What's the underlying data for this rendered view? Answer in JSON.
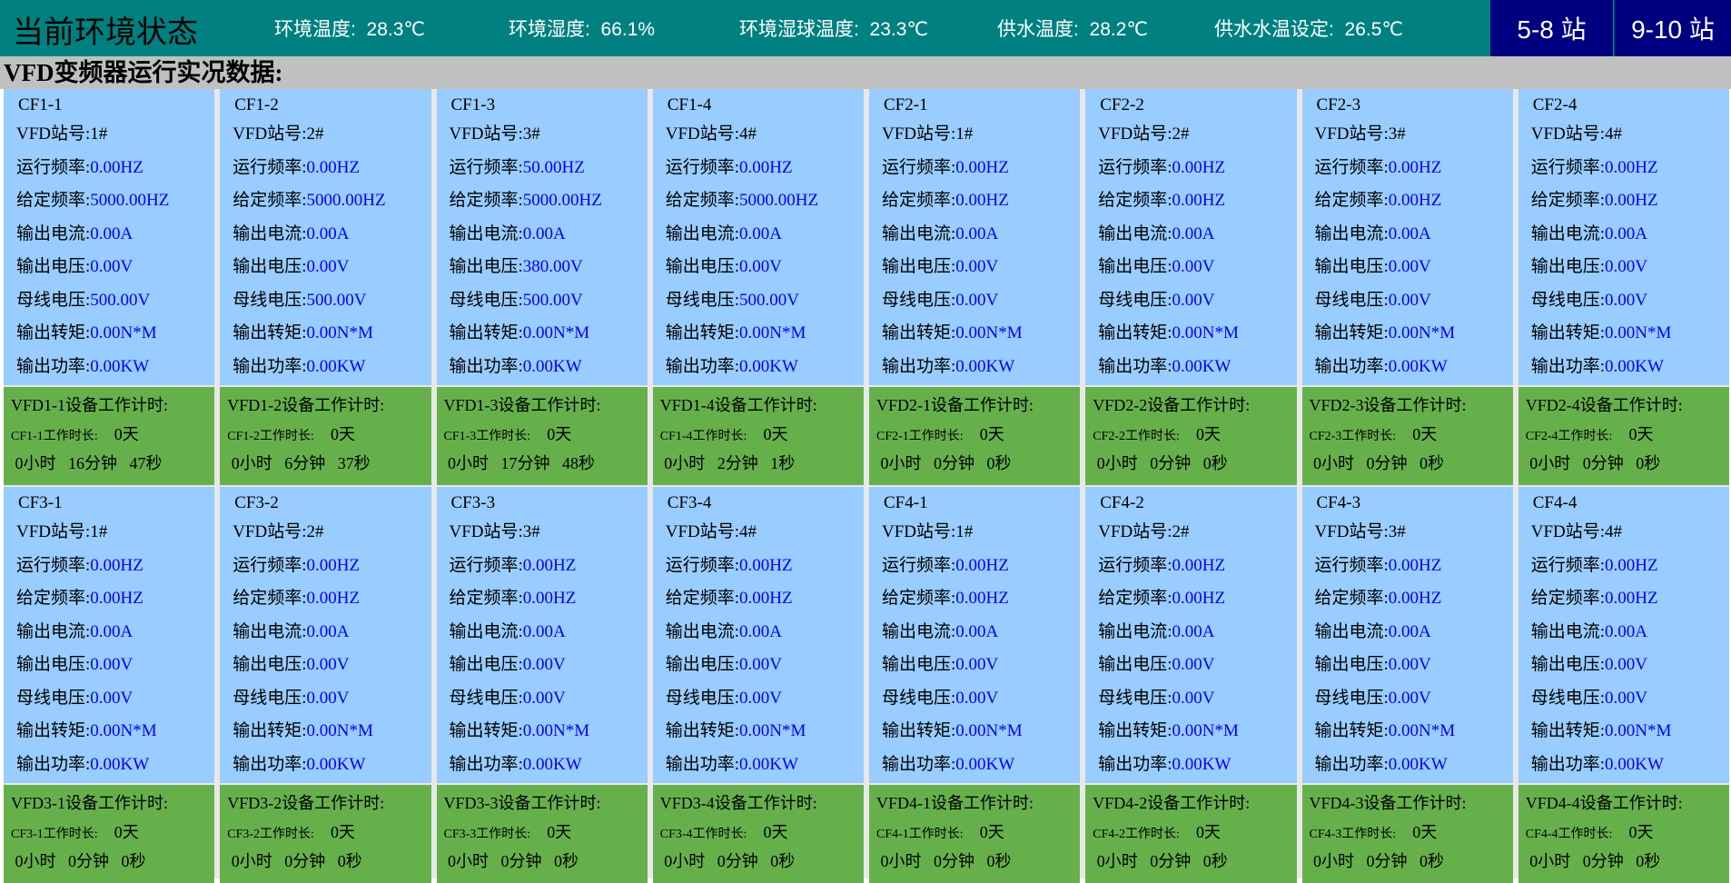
{
  "header": {
    "title": "当前环境状态",
    "env": [
      {
        "label": "环境温度:",
        "value": "28.3℃"
      },
      {
        "label": "环境湿度:",
        "value": "66.1%"
      },
      {
        "label": "环境湿球温度:",
        "value": "23.3℃"
      },
      {
        "label": "供水温度:",
        "value": "28.2℃"
      },
      {
        "label": "供水水温设定:",
        "value": "26.5℃"
      }
    ],
    "buttons": [
      "5-8 站",
      "9-10 站"
    ]
  },
  "section_title": "VFD变频器运行实况数据:",
  "labels": {
    "station": "VFD站号:",
    "run_freq": "运行频率:",
    "set_freq": "给定频率:",
    "current": "输出电流:",
    "out_volt": "输出电压:",
    "bus_volt": "母线电压:",
    "torque": "输出转矩:",
    "power": "输出功率:",
    "timer_suffix": "设备工作计时:",
    "dur_suffix": "工作时长:",
    "day": "天",
    "hour": "小时",
    "min": "分钟",
    "sec": "秒"
  },
  "rows": [
    {
      "cards": [
        {
          "name": "CF1-1",
          "vfd": "VFD1-1",
          "station": "1#",
          "run_freq": "0.00HZ",
          "set_freq": "5000.00HZ",
          "current": "0.00A",
          "out_volt": "0.00V",
          "bus_volt": "500.00V",
          "torque": "0.00N*M",
          "power": "0.00KW",
          "days": "0",
          "hours": "0",
          "mins": "16",
          "secs": "47"
        },
        {
          "name": "CF1-2",
          "vfd": "VFD1-2",
          "station": "2#",
          "run_freq": "0.00HZ",
          "set_freq": "5000.00HZ",
          "current": "0.00A",
          "out_volt": "0.00V",
          "bus_volt": "500.00V",
          "torque": "0.00N*M",
          "power": "0.00KW",
          "days": "0",
          "hours": "0",
          "mins": "6",
          "secs": "37"
        },
        {
          "name": "CF1-3",
          "vfd": "VFD1-3",
          "station": "3#",
          "run_freq": "50.00HZ",
          "set_freq": "5000.00HZ",
          "current": "0.00A",
          "out_volt": "380.00V",
          "bus_volt": "500.00V",
          "torque": "0.00N*M",
          "power": "0.00KW",
          "days": "0",
          "hours": "0",
          "mins": "17",
          "secs": "48"
        },
        {
          "name": "CF1-4",
          "vfd": "VFD1-4",
          "station": "4#",
          "run_freq": "0.00HZ",
          "set_freq": "5000.00HZ",
          "current": "0.00A",
          "out_volt": "0.00V",
          "bus_volt": "500.00V",
          "torque": "0.00N*M",
          "power": "0.00KW",
          "days": "0",
          "hours": "0",
          "mins": "2",
          "secs": "1"
        },
        {
          "name": "CF2-1",
          "vfd": "VFD2-1",
          "station": "1#",
          "run_freq": "0.00HZ",
          "set_freq": "0.00HZ",
          "current": "0.00A",
          "out_volt": "0.00V",
          "bus_volt": "0.00V",
          "torque": "0.00N*M",
          "power": "0.00KW",
          "days": "0",
          "hours": "0",
          "mins": "0",
          "secs": "0"
        },
        {
          "name": "CF2-2",
          "vfd": "VFD2-2",
          "station": "2#",
          "run_freq": "0.00HZ",
          "set_freq": "0.00HZ",
          "current": "0.00A",
          "out_volt": "0.00V",
          "bus_volt": "0.00V",
          "torque": "0.00N*M",
          "power": "0.00KW",
          "days": "0",
          "hours": "0",
          "mins": "0",
          "secs": "0"
        },
        {
          "name": "CF2-3",
          "vfd": "VFD2-3",
          "station": "3#",
          "run_freq": "0.00HZ",
          "set_freq": "0.00HZ",
          "current": "0.00A",
          "out_volt": "0.00V",
          "bus_volt": "0.00V",
          "torque": "0.00N*M",
          "power": "0.00KW",
          "days": "0",
          "hours": "0",
          "mins": "0",
          "secs": "0"
        },
        {
          "name": "CF2-4",
          "vfd": "VFD2-4",
          "station": "4#",
          "run_freq": "0.00HZ",
          "set_freq": "0.00HZ",
          "current": "0.00A",
          "out_volt": "0.00V",
          "bus_volt": "0.00V",
          "torque": "0.00N*M",
          "power": "0.00KW",
          "days": "0",
          "hours": "0",
          "mins": "0",
          "secs": "0"
        }
      ]
    },
    {
      "cards": [
        {
          "name": "CF3-1",
          "vfd": "VFD3-1",
          "station": "1#",
          "run_freq": "0.00HZ",
          "set_freq": "0.00HZ",
          "current": "0.00A",
          "out_volt": "0.00V",
          "bus_volt": "0.00V",
          "torque": "0.00N*M",
          "power": "0.00KW",
          "days": "0",
          "hours": "0",
          "mins": "0",
          "secs": "0"
        },
        {
          "name": "CF3-2",
          "vfd": "VFD3-2",
          "station": "2#",
          "run_freq": "0.00HZ",
          "set_freq": "0.00HZ",
          "current": "0.00A",
          "out_volt": "0.00V",
          "bus_volt": "0.00V",
          "torque": "0.00N*M",
          "power": "0.00KW",
          "days": "0",
          "hours": "0",
          "mins": "0",
          "secs": "0"
        },
        {
          "name": "CF3-3",
          "vfd": "VFD3-3",
          "station": "3#",
          "run_freq": "0.00HZ",
          "set_freq": "0.00HZ",
          "current": "0.00A",
          "out_volt": "0.00V",
          "bus_volt": "0.00V",
          "torque": "0.00N*M",
          "power": "0.00KW",
          "days": "0",
          "hours": "0",
          "mins": "0",
          "secs": "0"
        },
        {
          "name": "CF3-4",
          "vfd": "VFD3-4",
          "station": "4#",
          "run_freq": "0.00HZ",
          "set_freq": "0.00HZ",
          "current": "0.00A",
          "out_volt": "0.00V",
          "bus_volt": "0.00V",
          "torque": "0.00N*M",
          "power": "0.00KW",
          "days": "0",
          "hours": "0",
          "mins": "0",
          "secs": "0"
        },
        {
          "name": "CF4-1",
          "vfd": "VFD4-1",
          "station": "1#",
          "run_freq": "0.00HZ",
          "set_freq": "0.00HZ",
          "current": "0.00A",
          "out_volt": "0.00V",
          "bus_volt": "0.00V",
          "torque": "0.00N*M",
          "power": "0.00KW",
          "days": "0",
          "hours": "0",
          "mins": "0",
          "secs": "0"
        },
        {
          "name": "CF4-2",
          "vfd": "VFD4-2",
          "station": "2#",
          "run_freq": "0.00HZ",
          "set_freq": "0.00HZ",
          "current": "0.00A",
          "out_volt": "0.00V",
          "bus_volt": "0.00V",
          "torque": "0.00N*M",
          "power": "0.00KW",
          "days": "0",
          "hours": "0",
          "mins": "0",
          "secs": "0"
        },
        {
          "name": "CF4-3",
          "vfd": "VFD4-3",
          "station": "3#",
          "run_freq": "0.00HZ",
          "set_freq": "0.00HZ",
          "current": "0.00A",
          "out_volt": "0.00V",
          "bus_volt": "0.00V",
          "torque": "0.00N*M",
          "power": "0.00KW",
          "days": "0",
          "hours": "0",
          "mins": "0",
          "secs": "0"
        },
        {
          "name": "CF4-4",
          "vfd": "VFD4-4",
          "station": "4#",
          "run_freq": "0.00HZ",
          "set_freq": "0.00HZ",
          "current": "0.00A",
          "out_volt": "0.00V",
          "bus_volt": "0.00V",
          "torque": "0.00N*M",
          "power": "0.00KW",
          "days": "0",
          "hours": "0",
          "mins": "0",
          "secs": "0"
        }
      ]
    }
  ],
  "colors": {
    "header": "#008080",
    "button": "#000080",
    "section": "#c0c0c0",
    "card": "#99ccff",
    "timer": "#66b04c",
    "value": "#0000ff"
  }
}
